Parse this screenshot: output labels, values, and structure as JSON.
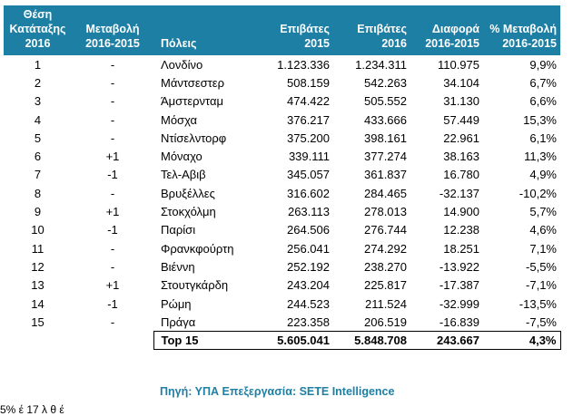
{
  "headers": {
    "rank": [
      "Θέση",
      "Κατάταξης",
      "2016"
    ],
    "change": [
      "Μεταβολή",
      "2016-2015"
    ],
    "city": [
      "Πόλεις"
    ],
    "pax2015": [
      "Επιβάτες",
      "2015"
    ],
    "pax2016": [
      "Επιβάτες",
      "2016"
    ],
    "diff": [
      "Διαφορά",
      "2016-2015"
    ],
    "pct": [
      "% Μεταβολή",
      "2016-2015"
    ]
  },
  "rows": [
    {
      "rank": "1",
      "change": "-",
      "city": "Λονδίνο",
      "pax2015": "1.123.336",
      "pax2016": "1.234.311",
      "diff": "110.975",
      "pct": "9,9%"
    },
    {
      "rank": "2",
      "change": "-",
      "city": "Μάντσεστερ",
      "pax2015": "508.159",
      "pax2016": "542.263",
      "diff": "34.104",
      "pct": "6,7%"
    },
    {
      "rank": "3",
      "change": "-",
      "city": "Άμστερνταμ",
      "pax2015": "474.422",
      "pax2016": "505.552",
      "diff": "31.130",
      "pct": "6,6%"
    },
    {
      "rank": "4",
      "change": "-",
      "city": "Μόσχα",
      "pax2015": "376.217",
      "pax2016": "433.666",
      "diff": "57.449",
      "pct": "15,3%"
    },
    {
      "rank": "5",
      "change": "-",
      "city": "Ντίσελντορφ",
      "pax2015": "375.200",
      "pax2016": "398.161",
      "diff": "22.961",
      "pct": "6,1%"
    },
    {
      "rank": "6",
      "change": "+1",
      "city": "Μόναχο",
      "pax2015": "339.111",
      "pax2016": "377.274",
      "diff": "38.163",
      "pct": "11,3%"
    },
    {
      "rank": "7",
      "change": "-1",
      "city": "Τελ-Αβιβ",
      "pax2015": "345.057",
      "pax2016": "361.837",
      "diff": "16.780",
      "pct": "4,9%"
    },
    {
      "rank": "8",
      "change": "-",
      "city": "Βρυξέλλες",
      "pax2015": "316.602",
      "pax2016": "284.465",
      "diff": "-32.137",
      "pct": "-10,2%"
    },
    {
      "rank": "9",
      "change": "+1",
      "city": "Στοκχόλμη",
      "pax2015": "263.113",
      "pax2016": "278.013",
      "diff": "14.900",
      "pct": "5,7%"
    },
    {
      "rank": "10",
      "change": "-1",
      "city": "Παρίσι",
      "pax2015": "264.506",
      "pax2016": "276.744",
      "diff": "12.238",
      "pct": "4,6%"
    },
    {
      "rank": "11",
      "change": "-",
      "city": "Φρανκφούρτη",
      "pax2015": "256.041",
      "pax2016": "274.292",
      "diff": "18.251",
      "pct": "7,1%"
    },
    {
      "rank": "12",
      "change": "-",
      "city": "Βιέννη",
      "pax2015": "252.192",
      "pax2016": "238.270",
      "diff": "-13.922",
      "pct": "-5,5%"
    },
    {
      "rank": "13",
      "change": "+1",
      "city": "Στουτγκάρδη",
      "pax2015": "243.204",
      "pax2016": "225.817",
      "diff": "-17.387",
      "pct": "-7,1%"
    },
    {
      "rank": "14",
      "change": "-1",
      "city": "Ρώμη",
      "pax2015": "244.523",
      "pax2016": "211.524",
      "diff": "-32.999",
      "pct": "-13,5%"
    },
    {
      "rank": "15",
      "change": "-",
      "city": "Πράγα",
      "pax2015": "223.358",
      "pax2016": "206.519",
      "diff": "-16.839",
      "pct": "-7,5%"
    }
  ],
  "total": {
    "label": "Top 15",
    "pax2015": "5.605.041",
    "pax2016": "5.848.708",
    "diff": "243.667",
    "pct": "4,3%"
  },
  "source": "Πηγή: ΥΠΑ Επεξεργασία: SETE Intelligence",
  "cut_text": "5% έ 17 λ θ έ",
  "colors": {
    "header_bg": "#1e7fa4",
    "source_text": "#1e7fa4"
  }
}
